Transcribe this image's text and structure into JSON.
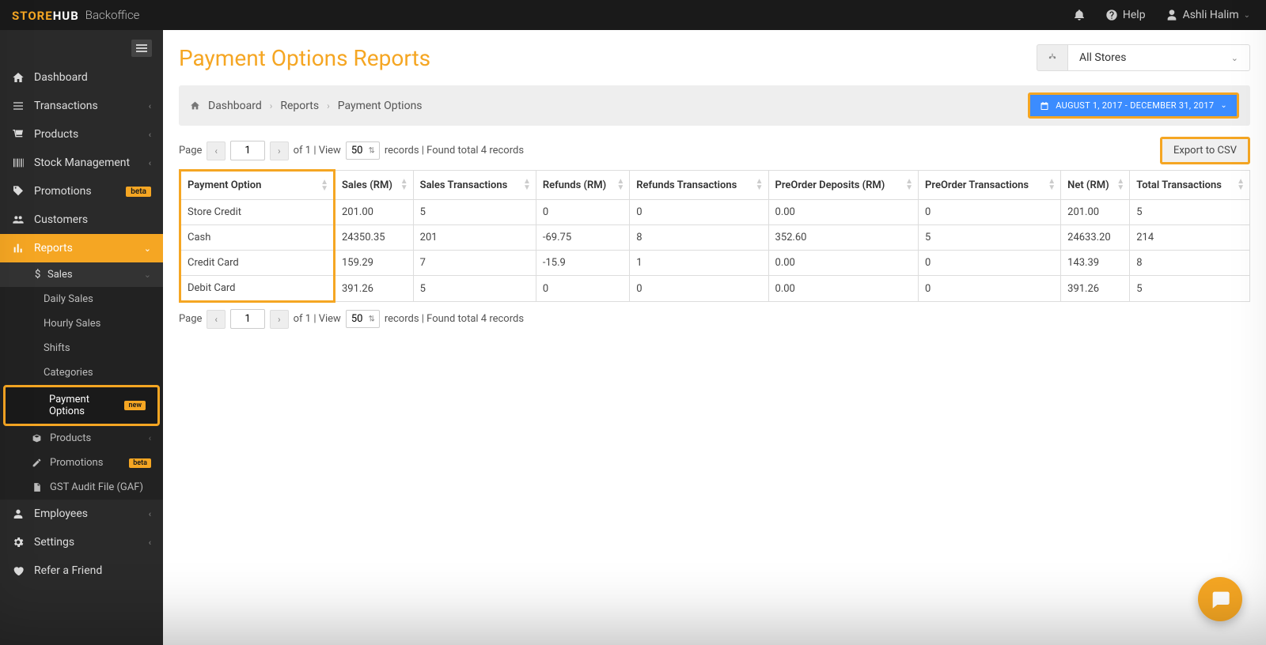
{
  "brand": {
    "logo1": "STORE",
    "logo2": "HUB",
    "suffix": "Backoffice"
  },
  "topbar": {
    "help": "Help",
    "user": "Ashli Halim"
  },
  "sidebar": {
    "items": [
      {
        "label": "Dashboard"
      },
      {
        "label": "Transactions"
      },
      {
        "label": "Products"
      },
      {
        "label": "Stock Management"
      },
      {
        "label": "Promotions",
        "badge": "beta"
      },
      {
        "label": "Customers"
      },
      {
        "label": "Reports"
      },
      {
        "label": "Employees"
      },
      {
        "label": "Settings"
      },
      {
        "label": "Refer a Friend"
      }
    ],
    "reports_sub": {
      "sales_header": "Sales",
      "items": [
        {
          "label": "Daily Sales"
        },
        {
          "label": "Hourly Sales"
        },
        {
          "label": "Shifts"
        },
        {
          "label": "Categories"
        },
        {
          "label": "Payment Options",
          "badge": "new"
        }
      ],
      "products": "Products",
      "promotions": "Promotions",
      "promotions_badge": "beta",
      "gst": "GST Audit File (GAF)"
    }
  },
  "page": {
    "title": "Payment Options Reports",
    "store_filter": "All Stores"
  },
  "breadcrumb": {
    "home": "Dashboard",
    "mid": "Reports",
    "leaf": "Payment Options"
  },
  "date_range": "AUGUST 1, 2017 - DECEMBER 31, 2017",
  "pagination": {
    "page_label": "Page",
    "page_value": "1",
    "of_text": "of 1 | View",
    "per_page": "50",
    "records_text": "records | Found total 4 records"
  },
  "export_label": "Export to CSV",
  "table": {
    "columns": [
      "Payment Option",
      "Sales (RM)",
      "Sales Transactions",
      "Refunds (RM)",
      "Refunds Transactions",
      "PreOrder Deposits (RM)",
      "PreOrder Transactions",
      "Net (RM)",
      "Total Transactions"
    ],
    "rows": [
      [
        "Store Credit",
        "201.00",
        "5",
        "0",
        "0",
        "0.00",
        "0",
        "201.00",
        "5"
      ],
      [
        "Cash",
        "24350.35",
        "201",
        "-69.75",
        "8",
        "352.60",
        "5",
        "24633.20",
        "214"
      ],
      [
        "Credit Card",
        "159.29",
        "7",
        "-15.9",
        "1",
        "0.00",
        "0",
        "143.39",
        "8"
      ],
      [
        "Debit Card",
        "391.26",
        "5",
        "0",
        "0",
        "0.00",
        "0",
        "391.26",
        "5"
      ]
    ]
  }
}
